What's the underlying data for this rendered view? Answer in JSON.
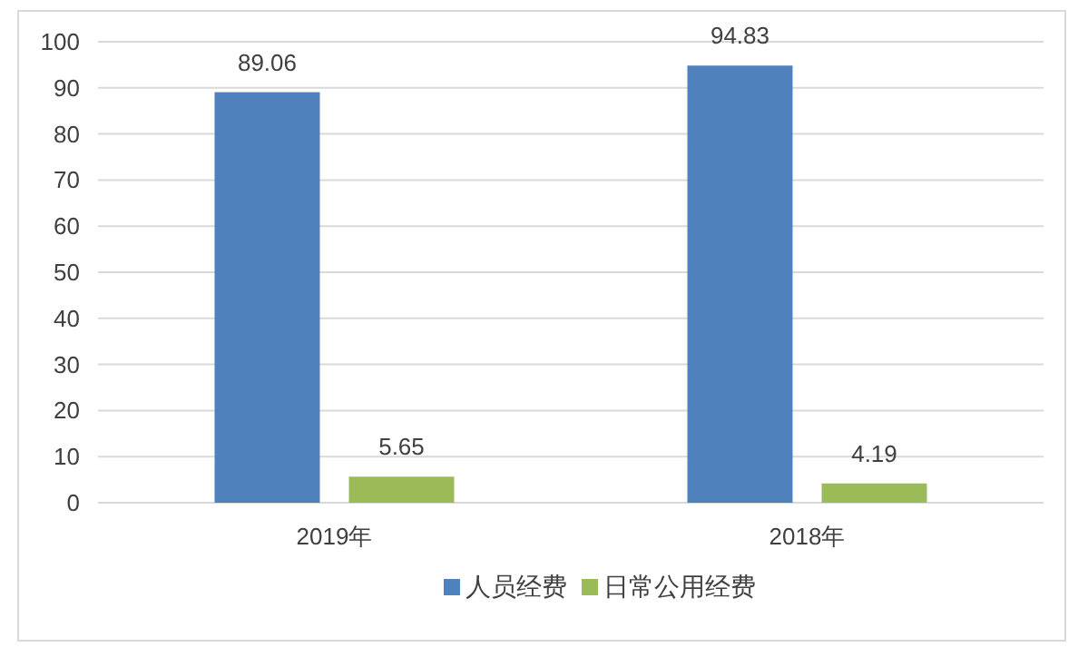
{
  "chart_data": {
    "type": "bar",
    "categories": [
      "2019年",
      "2018年"
    ],
    "series": [
      {
        "name": "人员经费",
        "color": "#4f81bd",
        "values": [
          89.06,
          94.83
        ]
      },
      {
        "name": "日常公用经费",
        "color": "#9bbb59",
        "values": [
          5.65,
          4.19
        ]
      }
    ],
    "ylim": [
      0,
      100
    ],
    "yticks": [
      0,
      10,
      20,
      30,
      40,
      50,
      60,
      70,
      80,
      90,
      100
    ],
    "grid": "y",
    "legend": "bottom",
    "data_labels": true
  }
}
